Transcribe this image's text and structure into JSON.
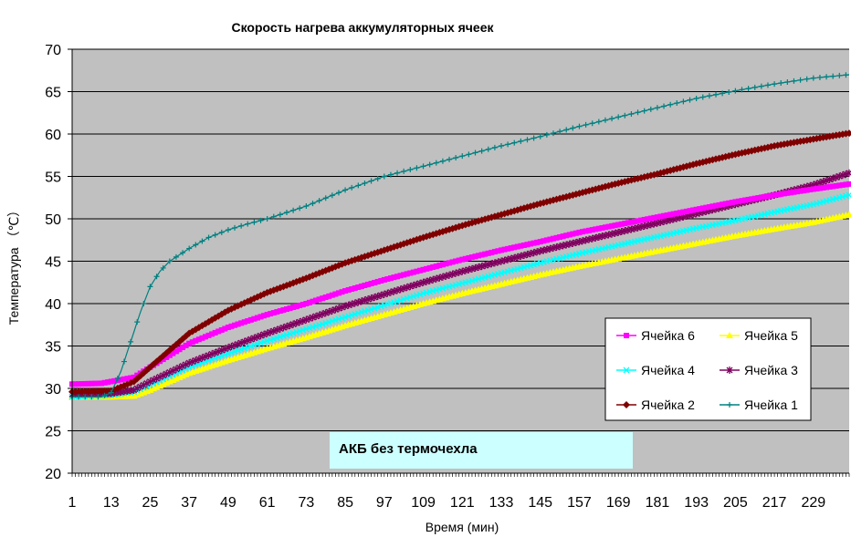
{
  "chart_data": {
    "type": "line",
    "title": "Скорость нагрева аккумуляторных ячеек",
    "xlabel": "Время (мин)",
    "ylabel": "Температура （℃）",
    "annotation": "АКБ без термочехла",
    "xlim": [
      1,
      240
    ],
    "ylim": [
      20,
      70
    ],
    "yticks": [
      20,
      25,
      30,
      35,
      40,
      45,
      50,
      55,
      60,
      65,
      70
    ],
    "xticks": [
      1,
      13,
      25,
      37,
      49,
      61,
      73,
      85,
      97,
      109,
      121,
      133,
      145,
      157,
      169,
      181,
      193,
      205,
      217,
      229
    ],
    "grid": "horizontal",
    "plot_background": "#c0c0c0",
    "legend_position": "right-center",
    "series": [
      {
        "name": "Ячейка 6",
        "color": "#ff00ff",
        "marker": "square",
        "x": [
          1,
          10,
          20,
          25,
          37,
          49,
          61,
          73,
          85,
          97,
          109,
          121,
          133,
          145,
          157,
          169,
          181,
          193,
          205,
          217,
          229,
          240
        ],
        "y": [
          30.5,
          30.6,
          31.3,
          32.5,
          35.3,
          37.2,
          38.7,
          40.0,
          41.5,
          42.8,
          44.0,
          45.2,
          46.3,
          47.3,
          48.4,
          49.3,
          50.2,
          51.1,
          52.0,
          52.8,
          53.5,
          54.1
        ]
      },
      {
        "name": "Ячейка 5",
        "color": "#ffff00",
        "marker": "triangle",
        "x": [
          1,
          13,
          20,
          25,
          37,
          49,
          61,
          73,
          85,
          97,
          109,
          121,
          133,
          145,
          157,
          169,
          181,
          193,
          205,
          217,
          229,
          240
        ],
        "y": [
          29.0,
          29.0,
          29.1,
          29.8,
          31.8,
          33.3,
          34.7,
          36.0,
          37.4,
          38.7,
          40.0,
          41.2,
          42.3,
          43.4,
          44.4,
          45.3,
          46.2,
          47.1,
          48.0,
          48.8,
          49.6,
          50.5
        ]
      },
      {
        "name": "Ячейка 4",
        "color": "#00ffff",
        "marker": "x",
        "x": [
          1,
          13,
          20,
          25,
          37,
          49,
          61,
          73,
          85,
          97,
          109,
          121,
          133,
          145,
          157,
          169,
          181,
          193,
          205,
          217,
          229,
          240
        ],
        "y": [
          29.0,
          29.2,
          29.6,
          30.4,
          32.5,
          34.1,
          35.6,
          37.0,
          38.4,
          39.8,
          41.2,
          42.4,
          43.6,
          44.8,
          45.9,
          46.9,
          47.9,
          48.9,
          49.8,
          50.8,
          51.7,
          52.8
        ]
      },
      {
        "name": "Ячейка 3",
        "color": "#800060",
        "marker": "star",
        "x": [
          1,
          13,
          20,
          25,
          37,
          49,
          61,
          73,
          85,
          97,
          109,
          121,
          133,
          145,
          157,
          169,
          181,
          193,
          205,
          217,
          229,
          240
        ],
        "y": [
          29.3,
          29.4,
          29.8,
          30.8,
          33.0,
          34.8,
          36.5,
          38.1,
          39.7,
          41.1,
          42.5,
          43.8,
          45.0,
          46.2,
          47.3,
          48.4,
          49.5,
          50.6,
          51.7,
          52.8,
          54.0,
          55.4
        ]
      },
      {
        "name": "Ячейка 2",
        "color": "#800000",
        "marker": "diamond",
        "x": [
          1,
          13,
          20,
          25,
          37,
          49,
          61,
          73,
          85,
          97,
          109,
          121,
          133,
          145,
          157,
          169,
          181,
          193,
          205,
          217,
          229,
          240
        ],
        "y": [
          29.6,
          29.7,
          30.8,
          32.5,
          36.5,
          39.2,
          41.3,
          43.0,
          44.8,
          46.3,
          47.8,
          49.2,
          50.5,
          51.8,
          53.0,
          54.2,
          55.3,
          56.5,
          57.6,
          58.6,
          59.4,
          60.1
        ]
      },
      {
        "name": "Ячейка 1",
        "color": "#008080",
        "marker": "plus",
        "x": [
          1,
          10,
          13,
          16,
          19,
          22,
          25,
          28,
          31,
          37,
          43,
          49,
          55,
          61,
          73,
          85,
          97,
          109,
          121,
          133,
          145,
          157,
          169,
          181,
          193,
          205,
          217,
          229,
          240
        ],
        "y": [
          29.0,
          29.0,
          29.5,
          32.0,
          35.5,
          39.0,
          42.0,
          43.8,
          45.0,
          46.5,
          47.8,
          48.7,
          49.4,
          50.0,
          51.5,
          53.4,
          55.0,
          56.2,
          57.4,
          58.6,
          59.7,
          60.9,
          62.0,
          63.1,
          64.2,
          65.1,
          65.9,
          66.6,
          67.0
        ]
      }
    ]
  },
  "legend": {
    "rows": [
      [
        "Ячейка 6",
        "Ячейка 5"
      ],
      [
        "Ячейка 4",
        "Ячейка 3"
      ],
      [
        "Ячейка 2",
        "Ячейка 1"
      ]
    ]
  }
}
